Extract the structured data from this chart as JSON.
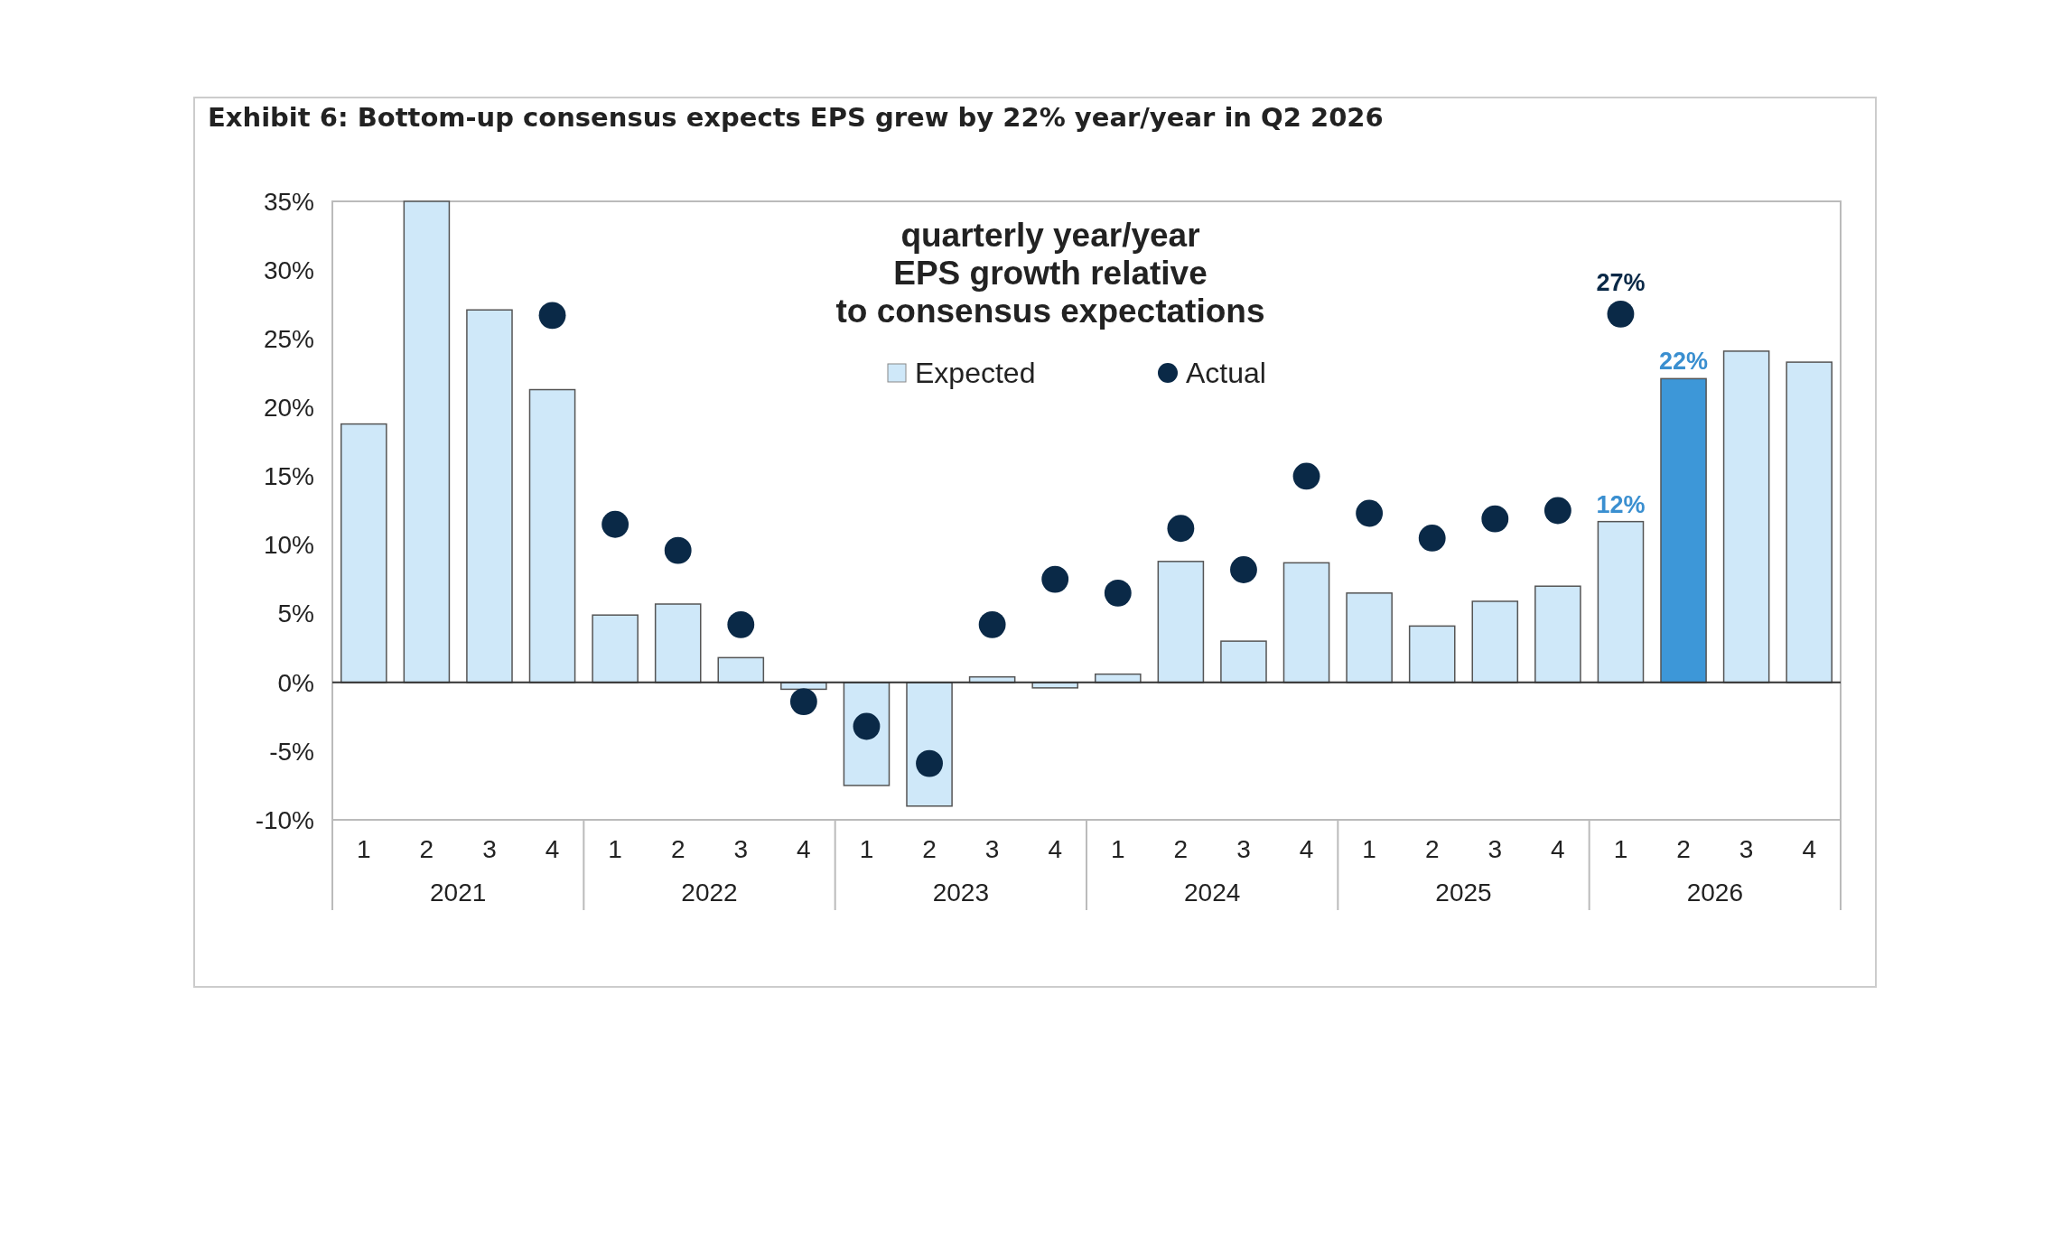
{
  "chart_data": {
    "type": "bar",
    "title": "Exhibit 6: Bottom-up consensus expects EPS grew by 22% year/year in Q2 2026",
    "subtitle": "quarterly year/year EPS growth relative to consensus expectations",
    "categories": [
      "1",
      "2",
      "3",
      "4",
      "1",
      "2",
      "3",
      "4",
      "1",
      "2",
      "3",
      "4",
      "1",
      "2",
      "3",
      "4",
      "1",
      "2",
      "3",
      "4",
      "1",
      "2",
      "3",
      "4"
    ],
    "annotations": [
      "2021",
      "2022",
      "2023",
      "2024",
      "2025",
      "2026"
    ],
    "series": [
      {
        "name": "Expected",
        "color": "#cfe8f9",
        "colors": [
          "#cfe8f9",
          "#cfe8f9",
          "#cfe8f9",
          "#cfe8f9",
          "#cfe8f9",
          "#cfe8f9",
          "#cfe8f9",
          "#cfe8f9",
          "#cfe8f9",
          "#cfe8f9",
          "#cfe8f9",
          "#cfe8f9",
          "#cfe8f9",
          "#cfe8f9",
          "#cfe8f9",
          "#cfe8f9",
          "#cfe8f9",
          "#cfe8f9",
          "#cfe8f9",
          "#cfe8f9",
          "#cfe8f9",
          "#3d97d8",
          "#cfe8f9",
          "#cfe8f9"
        ],
        "values": [
          18.8,
          35,
          27.1,
          21.3,
          4.9,
          5.7,
          1.8,
          -0.5,
          -7.5,
          -9,
          0.4,
          -0.4,
          0.6,
          8.8,
          3,
          8.7,
          6.5,
          4.1,
          5.9,
          7,
          11.7,
          22.1,
          24.1,
          23.3
        ],
        "value_labels": [
          null,
          null,
          null,
          null,
          null,
          null,
          null,
          null,
          null,
          null,
          null,
          null,
          null,
          null,
          null,
          null,
          null,
          null,
          null,
          null,
          "12%",
          "22%",
          null,
          null
        ]
      },
      {
        "name": "Actual",
        "type": "scatter",
        "color": "#0a2947",
        "marker": "circle",
        "values": [
          null,
          null,
          null,
          26.7,
          11.5,
          9.6,
          4.2,
          -1.4,
          -3.2,
          -5.9,
          4.2,
          7.5,
          6.5,
          11.2,
          8.2,
          15,
          12.3,
          10.5,
          11.9,
          12.5,
          26.8,
          null,
          null,
          null
        ],
        "value_labels": [
          null,
          null,
          null,
          null,
          null,
          null,
          null,
          null,
          null,
          null,
          null,
          null,
          null,
          null,
          null,
          null,
          null,
          null,
          null,
          null,
          "27%",
          null,
          null,
          null
        ]
      }
    ],
    "ylim": [
      -10,
      35
    ],
    "yticks": [
      {
        "value": -10,
        "label": "-10%"
      },
      {
        "value": -5,
        "label": "-5%"
      },
      {
        "value": 0,
        "label": "0%"
      },
      {
        "value": 5,
        "label": "5%"
      },
      {
        "value": 10,
        "label": "10%"
      },
      {
        "value": 15,
        "label": "15%"
      },
      {
        "value": 20,
        "label": "20%"
      },
      {
        "value": 25,
        "label": "25%"
      },
      {
        "value": 30,
        "label": "30%"
      },
      {
        "value": 35,
        "label": "35%"
      }
    ],
    "legend": "top"
  }
}
